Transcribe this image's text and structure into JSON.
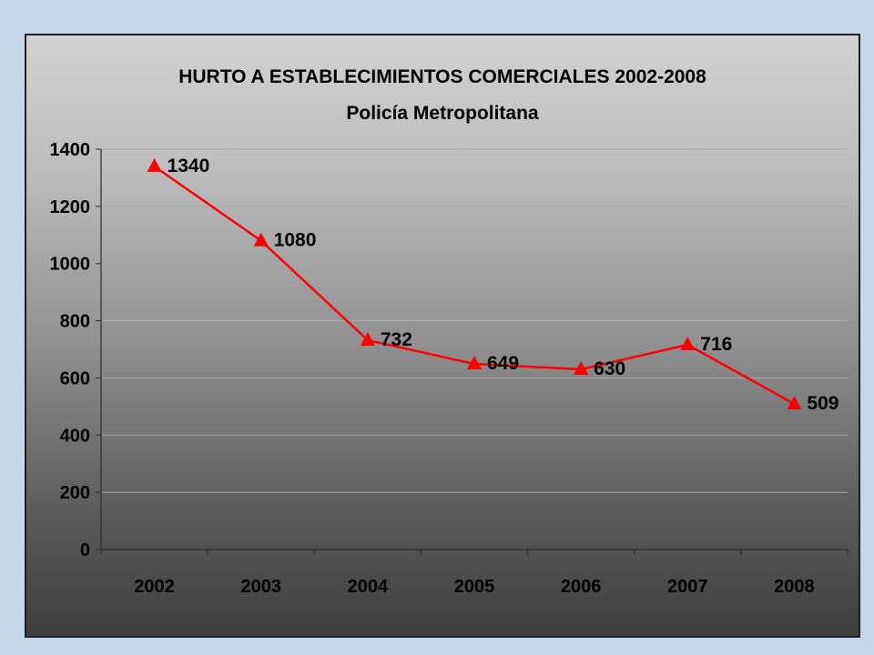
{
  "colors": {
    "page_background": "#c5d6ea",
    "series_line": "#ff0000",
    "marker": "#ff0000",
    "gridline": "#a8a8a8",
    "axis": "#2a2a2a"
  },
  "chart_data": {
    "type": "line",
    "title": "HURTO A ESTABLECIMIENTOS COMERCIALES 2002-2008",
    "subtitle": "Policía Metropolitana",
    "xlabel": "",
    "ylabel": "",
    "categories": [
      "2002",
      "2003",
      "2004",
      "2005",
      "2006",
      "2007",
      "2008"
    ],
    "series": [
      {
        "values": [
          1340,
          1080,
          732,
          649,
          630,
          716,
          509
        ],
        "data_labels": [
          "1340",
          "1080",
          "732",
          "649",
          "630",
          "716",
          "509"
        ],
        "marker": "triangle-icon"
      }
    ],
    "ylim": [
      0,
      1400
    ],
    "yticks": [
      "0",
      "200",
      "400",
      "600",
      "800",
      "1000",
      "1200",
      "1400"
    ],
    "grid": true,
    "legend": "none"
  }
}
